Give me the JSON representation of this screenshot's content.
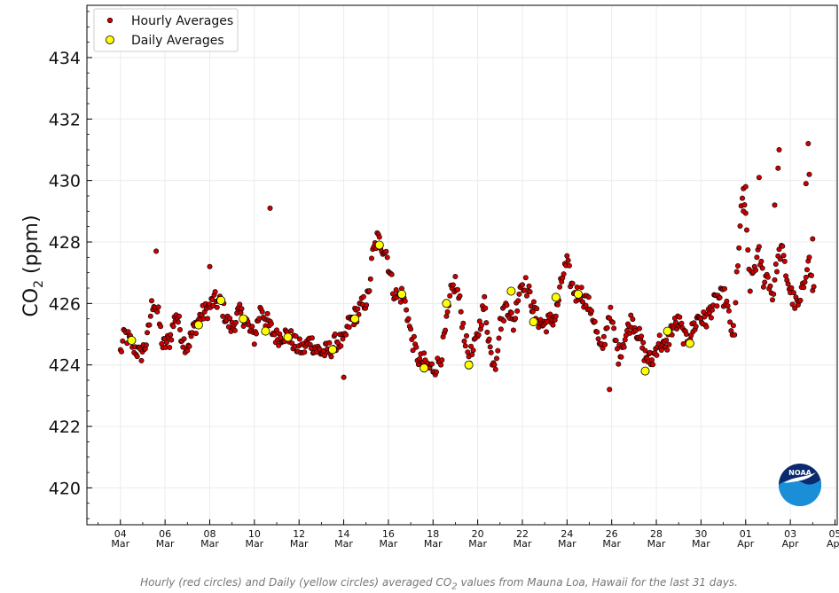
{
  "chart_data": {
    "type": "scatter",
    "title": "",
    "ylabel_main": "CO",
    "ylabel_sub": "2",
    "ylabel_unit": " (ppm)",
    "ylim": [
      418.8,
      435.7
    ],
    "xlim_days": [
      -1.5,
      32.1
    ],
    "yticks": [
      420,
      422,
      424,
      426,
      428,
      430,
      432,
      434
    ],
    "xticks": [
      {
        "day": 0,
        "d": "04",
        "m": "Mar"
      },
      {
        "day": 2,
        "d": "06",
        "m": "Mar"
      },
      {
        "day": 4,
        "d": "08",
        "m": "Mar"
      },
      {
        "day": 6,
        "d": "10",
        "m": "Mar"
      },
      {
        "day": 8,
        "d": "12",
        "m": "Mar"
      },
      {
        "day": 10,
        "d": "14",
        "m": "Mar"
      },
      {
        "day": 12,
        "d": "16",
        "m": "Mar"
      },
      {
        "day": 14,
        "d": "18",
        "m": "Mar"
      },
      {
        "day": 16,
        "d": "20",
        "m": "Mar"
      },
      {
        "day": 18,
        "d": "22",
        "m": "Mar"
      },
      {
        "day": 20,
        "d": "24",
        "m": "Mar"
      },
      {
        "day": 22,
        "d": "26",
        "m": "Mar"
      },
      {
        "day": 24,
        "d": "28",
        "m": "Mar"
      },
      {
        "day": 26,
        "d": "30",
        "m": "Mar"
      },
      {
        "day": 28,
        "d": "01",
        "m": "Apr"
      },
      {
        "day": 30,
        "d": "03",
        "m": "Apr"
      },
      {
        "day": 32,
        "d": "05",
        "m": "Apr"
      }
    ],
    "legend": {
      "position": "top-left",
      "items": [
        "Hourly Averages",
        "Daily Averages"
      ]
    },
    "grid": true,
    "series": [
      {
        "name": "Hourly Averages",
        "color": "#cc0000",
        "edge": "#000000",
        "anchors": [
          [
            0.0,
            424.4
          ],
          [
            0.2,
            425.0
          ],
          [
            0.4,
            424.8
          ],
          [
            0.7,
            424.5
          ],
          [
            0.9,
            424.3
          ],
          [
            1.2,
            424.8
          ],
          [
            1.4,
            425.9
          ],
          [
            1.5,
            426.1
          ],
          [
            1.7,
            425.6
          ],
          [
            1.9,
            424.6
          ],
          [
            2.2,
            424.8
          ],
          [
            2.5,
            425.7
          ],
          [
            2.8,
            424.8
          ],
          [
            3.0,
            424.6
          ],
          [
            3.3,
            425.2
          ],
          [
            3.6,
            425.6
          ],
          [
            3.9,
            425.8
          ],
          [
            4.2,
            426.1
          ],
          [
            4.5,
            426.0
          ],
          [
            4.8,
            425.4
          ],
          [
            5.0,
            425.2
          ],
          [
            5.3,
            425.7
          ],
          [
            5.6,
            425.5
          ],
          [
            5.8,
            425.1
          ],
          [
            6.0,
            424.9
          ],
          [
            6.3,
            425.9
          ],
          [
            6.5,
            425.5
          ],
          [
            6.8,
            425.1
          ],
          [
            7.0,
            424.9
          ],
          [
            7.3,
            425.0
          ],
          [
            7.6,
            424.9
          ],
          [
            7.9,
            424.6
          ],
          [
            8.2,
            424.5
          ],
          [
            8.5,
            424.8
          ],
          [
            8.8,
            424.5
          ],
          [
            9.1,
            424.4
          ],
          [
            9.4,
            424.5
          ],
          [
            9.7,
            424.8
          ],
          [
            10.0,
            424.7
          ],
          [
            10.2,
            425.3
          ],
          [
            10.5,
            425.6
          ],
          [
            10.8,
            425.9
          ],
          [
            11.1,
            426.2
          ],
          [
            11.3,
            427.6
          ],
          [
            11.5,
            428.1
          ],
          [
            11.7,
            427.9
          ],
          [
            11.9,
            427.7
          ],
          [
            12.0,
            427.3
          ],
          [
            12.2,
            426.5
          ],
          [
            12.4,
            426.2
          ],
          [
            12.6,
            426.3
          ],
          [
            12.8,
            425.9
          ],
          [
            13.0,
            425.0
          ],
          [
            13.2,
            424.5
          ],
          [
            13.4,
            424.1
          ],
          [
            13.6,
            424.1
          ],
          [
            13.8,
            423.9
          ],
          [
            14.0,
            423.9
          ],
          [
            14.2,
            424.0
          ],
          [
            14.4,
            424.4
          ],
          [
            14.6,
            425.3
          ],
          [
            14.8,
            426.3
          ],
          [
            15.0,
            426.7
          ],
          [
            15.2,
            426.0
          ],
          [
            15.4,
            425.0
          ],
          [
            15.6,
            424.3
          ],
          [
            15.8,
            424.4
          ],
          [
            16.0,
            425.0
          ],
          [
            16.3,
            426.0
          ],
          [
            16.6,
            424.3
          ],
          [
            16.8,
            424.1
          ],
          [
            17.0,
            425.3
          ],
          [
            17.3,
            426.0
          ],
          [
            17.6,
            425.3
          ],
          [
            17.9,
            426.6
          ],
          [
            18.1,
            426.7
          ],
          [
            18.3,
            426.3
          ],
          [
            18.6,
            425.6
          ],
          [
            18.9,
            425.3
          ],
          [
            19.2,
            425.4
          ],
          [
            19.5,
            425.6
          ],
          [
            19.8,
            426.9
          ],
          [
            20.0,
            427.3
          ],
          [
            20.2,
            426.6
          ],
          [
            20.4,
            426.3
          ],
          [
            20.6,
            426.4
          ],
          [
            20.8,
            426.1
          ],
          [
            21.1,
            425.8
          ],
          [
            21.3,
            425.1
          ],
          [
            21.5,
            424.4
          ],
          [
            21.7,
            424.9
          ],
          [
            21.9,
            425.8
          ],
          [
            22.1,
            425.0
          ],
          [
            22.3,
            424.3
          ],
          [
            22.6,
            424.9
          ],
          [
            22.9,
            425.5
          ],
          [
            23.2,
            425.0
          ],
          [
            23.5,
            424.3
          ],
          [
            23.8,
            424.1
          ],
          [
            24.1,
            424.8
          ],
          [
            24.4,
            424.5
          ],
          [
            24.7,
            425.2
          ],
          [
            25.0,
            425.4
          ],
          [
            25.3,
            424.8
          ],
          [
            25.6,
            425.1
          ],
          [
            25.9,
            425.6
          ],
          [
            26.2,
            425.4
          ],
          [
            26.5,
            425.9
          ],
          [
            26.8,
            426.2
          ],
          [
            27.1,
            426.2
          ],
          [
            27.3,
            425.3
          ],
          [
            27.5,
            424.9
          ],
          [
            27.6,
            426.9
          ],
          [
            27.8,
            428.9
          ],
          [
            27.9,
            429.8
          ],
          [
            28.1,
            427.6
          ],
          [
            28.2,
            426.6
          ],
          [
            28.4,
            427.2
          ],
          [
            28.6,
            427.6
          ],
          [
            28.8,
            426.8
          ],
          [
            29.0,
            426.9
          ],
          [
            29.2,
            426.2
          ],
          [
            29.4,
            427.3
          ],
          [
            29.6,
            427.8
          ],
          [
            29.8,
            427.0
          ],
          [
            30.0,
            426.4
          ],
          [
            30.2,
            426.0
          ],
          [
            30.4,
            425.9
          ],
          [
            30.6,
            426.6
          ],
          [
            30.8,
            427.6
          ],
          [
            31.0,
            426.5
          ],
          [
            31.1,
            426.4
          ]
        ],
        "spikes": [
          [
            1.6,
            427.7
          ],
          [
            4.0,
            427.2
          ],
          [
            6.7,
            429.1
          ],
          [
            10.0,
            423.6
          ],
          [
            21.9,
            423.2
          ],
          [
            29.5,
            431.0
          ],
          [
            29.45,
            430.4
          ],
          [
            29.3,
            429.2
          ],
          [
            28.6,
            430.1
          ],
          [
            30.8,
            431.2
          ],
          [
            30.85,
            430.2
          ],
          [
            30.7,
            429.9
          ],
          [
            31.0,
            428.1
          ],
          [
            27.9,
            429.0
          ],
          [
            28.0,
            429.8
          ]
        ],
        "ptsPerDay": 22,
        "jitter": 0.3
      },
      {
        "name": "Daily Averages",
        "color": "#ffff00",
        "edge": "#000000",
        "points": [
          [
            0.5,
            424.8
          ],
          [
            3.5,
            425.3
          ],
          [
            4.5,
            426.1
          ],
          [
            5.5,
            425.5
          ],
          [
            6.5,
            425.1
          ],
          [
            7.5,
            424.9
          ],
          [
            9.5,
            424.5
          ],
          [
            10.5,
            425.5
          ],
          [
            11.6,
            427.9
          ],
          [
            12.6,
            426.3
          ],
          [
            13.6,
            423.9
          ],
          [
            14.6,
            426.0
          ],
          [
            15.6,
            424.0
          ],
          [
            17.5,
            426.4
          ],
          [
            18.5,
            425.4
          ],
          [
            19.5,
            426.2
          ],
          [
            20.5,
            426.3
          ],
          [
            23.5,
            423.8
          ],
          [
            24.5,
            425.1
          ],
          [
            25.5,
            424.7
          ]
        ]
      }
    ],
    "caption_before": "Hourly (red circles) and Daily (yellow circles) averaged CO",
    "caption_sub": "2",
    "caption_after": " values from Mauna Loa, Hawaii for the last 31 days."
  },
  "logo": {
    "text": "NOAA",
    "colors": {
      "top": "#0a2a6e",
      "bottom": "#1a8fd8",
      "mid": "#ffffff"
    }
  }
}
